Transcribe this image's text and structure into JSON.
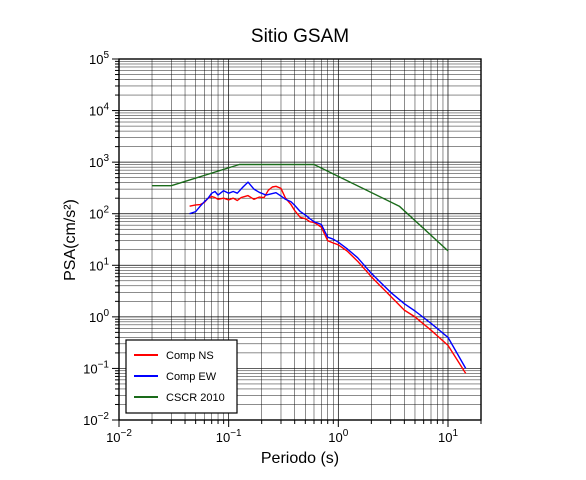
{
  "chart_data": {
    "type": "line",
    "title": "Sitio GSAM",
    "xlabel": "Periodo (s)",
    "ylabel": "PSA(cm/s²)",
    "xscale": "log",
    "yscale": "log",
    "xlim": [
      0.01,
      20
    ],
    "ylim": [
      0.01,
      100000
    ],
    "x_ticks": [
      {
        "value": 0.01,
        "base": "10",
        "exp": "−2"
      },
      {
        "value": 0.1,
        "base": "10",
        "exp": "−1"
      },
      {
        "value": 1,
        "base": "10",
        "exp": "0"
      },
      {
        "value": 10,
        "base": "10",
        "exp": "1"
      }
    ],
    "y_ticks": [
      {
        "value": 0.01,
        "base": "10",
        "exp": "−2"
      },
      {
        "value": 0.1,
        "base": "10",
        "exp": "−1"
      },
      {
        "value": 1,
        "base": "10",
        "exp": "0"
      },
      {
        "value": 10,
        "base": "10",
        "exp": "1"
      },
      {
        "value": 100,
        "base": "10",
        "exp": "2"
      },
      {
        "value": 1000,
        "base": "10",
        "exp": "3"
      },
      {
        "value": 10000,
        "base": "10",
        "exp": "4"
      },
      {
        "value": 100000,
        "base": "10",
        "exp": "5"
      }
    ],
    "grid": true,
    "legend_position": "bottom-left",
    "series": [
      {
        "name": "Comp NS",
        "color": "#ff0000",
        "points": [
          [
            0.044,
            140
          ],
          [
            0.05,
            148
          ],
          [
            0.055,
            150
          ],
          [
            0.06,
            165
          ],
          [
            0.065,
            200
          ],
          [
            0.07,
            215
          ],
          [
            0.075,
            205
          ],
          [
            0.08,
            190
          ],
          [
            0.09,
            200
          ],
          [
            0.1,
            185
          ],
          [
            0.11,
            200
          ],
          [
            0.12,
            180
          ],
          [
            0.13,
            205
          ],
          [
            0.15,
            225
          ],
          [
            0.17,
            190
          ],
          [
            0.19,
            210
          ],
          [
            0.21,
            205
          ],
          [
            0.23,
            285
          ],
          [
            0.25,
            330
          ],
          [
            0.27,
            340
          ],
          [
            0.3,
            310
          ],
          [
            0.33,
            200
          ],
          [
            0.37,
            150
          ],
          [
            0.4,
            115
          ],
          [
            0.45,
            85
          ],
          [
            0.5,
            80
          ],
          [
            0.55,
            70
          ],
          [
            0.6,
            68
          ],
          [
            0.7,
            55
          ],
          [
            0.8,
            30
          ],
          [
            0.9,
            27
          ],
          [
            1.0,
            25
          ],
          [
            1.2,
            19
          ],
          [
            1.5,
            12
          ],
          [
            2.0,
            6
          ],
          [
            3.0,
            2.5
          ],
          [
            4.0,
            1.35
          ],
          [
            5.0,
            1.0
          ],
          [
            7.0,
            0.55
          ],
          [
            10.0,
            0.28
          ],
          [
            14.5,
            0.08
          ]
        ]
      },
      {
        "name": "Comp EW",
        "color": "#0000ff",
        "points": [
          [
            0.044,
            100
          ],
          [
            0.05,
            110
          ],
          [
            0.055,
            140
          ],
          [
            0.06,
            170
          ],
          [
            0.065,
            200
          ],
          [
            0.07,
            250
          ],
          [
            0.075,
            270
          ],
          [
            0.08,
            230
          ],
          [
            0.09,
            280
          ],
          [
            0.1,
            250
          ],
          [
            0.11,
            270
          ],
          [
            0.12,
            250
          ],
          [
            0.135,
            330
          ],
          [
            0.15,
            410
          ],
          [
            0.17,
            300
          ],
          [
            0.19,
            260
          ],
          [
            0.22,
            230
          ],
          [
            0.25,
            245
          ],
          [
            0.27,
            255
          ],
          [
            0.3,
            220
          ],
          [
            0.33,
            190
          ],
          [
            0.37,
            170
          ],
          [
            0.4,
            145
          ],
          [
            0.45,
            110
          ],
          [
            0.5,
            95
          ],
          [
            0.55,
            80
          ],
          [
            0.6,
            70
          ],
          [
            0.7,
            62
          ],
          [
            0.8,
            35
          ],
          [
            0.9,
            32
          ],
          [
            1.0,
            28
          ],
          [
            1.2,
            21
          ],
          [
            1.5,
            14
          ],
          [
            2.0,
            7
          ],
          [
            3.0,
            3.0
          ],
          [
            4.0,
            1.8
          ],
          [
            5.0,
            1.3
          ],
          [
            7.0,
            0.75
          ],
          [
            10.0,
            0.4
          ],
          [
            14.5,
            0.1
          ]
        ]
      },
      {
        "name": "CSCR 2010",
        "color": "#1a6b1a",
        "points": [
          [
            0.02,
            350
          ],
          [
            0.03,
            350
          ],
          [
            0.125,
            900
          ],
          [
            0.6,
            900
          ],
          [
            3.6,
            140
          ],
          [
            10.0,
            19
          ]
        ]
      }
    ]
  }
}
